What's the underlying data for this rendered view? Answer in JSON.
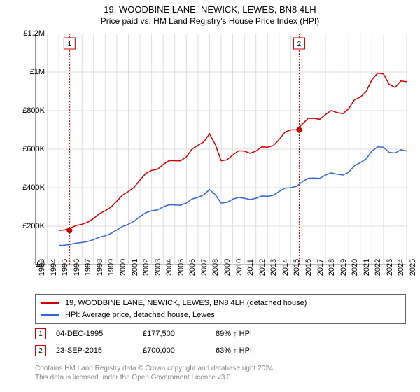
{
  "title": "19, WOODBINE LANE, NEWICK, LEWES, BN8 4LH",
  "subtitle": "Price paid vs. HM Land Registry's House Price Index (HPI)",
  "chart": {
    "type": "line",
    "background_color": "#ffffff",
    "grid_color": "#dddddd",
    "axis_color": "#999999",
    "yaxis": {
      "min": 0,
      "max": 1200000,
      "ticks": [
        0,
        200000,
        400000,
        600000,
        800000,
        1000000,
        1200000
      ],
      "labels": [
        "£0",
        "£200K",
        "£400K",
        "£600K",
        "£800K",
        "£1M",
        "£1.2M"
      ],
      "label_fontsize": 11
    },
    "xaxis": {
      "min": 1993,
      "max": 2025,
      "ticks": [
        1993,
        1994,
        1995,
        1996,
        1997,
        1998,
        1999,
        2000,
        2001,
        2002,
        2003,
        2004,
        2005,
        2006,
        2007,
        2008,
        2009,
        2010,
        2011,
        2012,
        2013,
        2014,
        2015,
        2016,
        2017,
        2018,
        2019,
        2020,
        2021,
        2022,
        2023,
        2024,
        2025
      ],
      "label_fontsize": 11
    },
    "series": [
      {
        "name": "19, WOODBINE LANE, NEWICK, LEWES, BN8 4LH (detached house)",
        "color": "#cc0000",
        "line_width": 1.5,
        "x": [
          1995,
          1996,
          1997,
          1998,
          1999,
          2000,
          2001,
          2002,
          2003,
          2004,
          2005,
          2006,
          2007,
          2008,
          2009,
          2010,
          2011,
          2012,
          2013,
          2014,
          2015,
          2016,
          2017,
          2018,
          2019,
          2020,
          2021,
          2022,
          2023,
          2024,
          2025
        ],
        "y": [
          177500,
          190000,
          210000,
          240000,
          280000,
          330000,
          380000,
          440000,
          490000,
          520000,
          540000,
          560000,
          620000,
          680000,
          540000,
          570000,
          590000,
          590000,
          610000,
          650000,
          700000,
          730000,
          760000,
          780000,
          790000,
          810000,
          870000,
          960000,
          990000,
          920000,
          950000
        ]
      },
      {
        "name": "HPI: Average price, detached house, Lewes",
        "color": "#3366cc",
        "line_width": 1.5,
        "x": [
          1995,
          1996,
          1997,
          1998,
          1999,
          2000,
          2001,
          2002,
          2003,
          2004,
          2005,
          2006,
          2007,
          2008,
          2009,
          2010,
          2011,
          2012,
          2013,
          2014,
          2015,
          2016,
          2017,
          2018,
          2019,
          2020,
          2021,
          2022,
          2023,
          2024,
          2025
        ],
        "y": [
          100000,
          105000,
          115000,
          130000,
          150000,
          180000,
          210000,
          250000,
          280000,
          300000,
          310000,
          320000,
          350000,
          390000,
          320000,
          340000,
          345000,
          345000,
          355000,
          380000,
          400000,
          430000,
          450000,
          465000,
          470000,
          480000,
          530000,
          590000,
          610000,
          580000,
          590000
        ]
      }
    ],
    "markers": [
      {
        "n": "1",
        "x": 1995.92,
        "y": 177500,
        "color": "#cc0000",
        "vline_color": "#cc0000"
      },
      {
        "n": "2",
        "x": 2015.73,
        "y": 700000,
        "color": "#cc0000",
        "vline_color": "#cc0000"
      }
    ],
    "marker_box_border": "#cc0000",
    "marker_box_fill": "#ffffff"
  },
  "legend": {
    "border_color": "#666666",
    "items": [
      {
        "color": "#cc0000",
        "label": "19, WOODBINE LANE, NEWICK, LEWES, BN8 4LH (detached house)"
      },
      {
        "color": "#3366cc",
        "label": "HPI: Average price, detached house, Lewes"
      }
    ]
  },
  "sales": [
    {
      "n": "1",
      "date": "04-DEC-1995",
      "price": "£177,500",
      "hpi": "89% ↑ HPI"
    },
    {
      "n": "2",
      "date": "23-SEP-2015",
      "price": "£700,000",
      "hpi": "63% ↑ HPI"
    }
  ],
  "footnote_line1": "Contains HM Land Registry data © Crown copyright and database right 2024.",
  "footnote_line2": "This data is licensed under the Open Government Licence v3.0."
}
